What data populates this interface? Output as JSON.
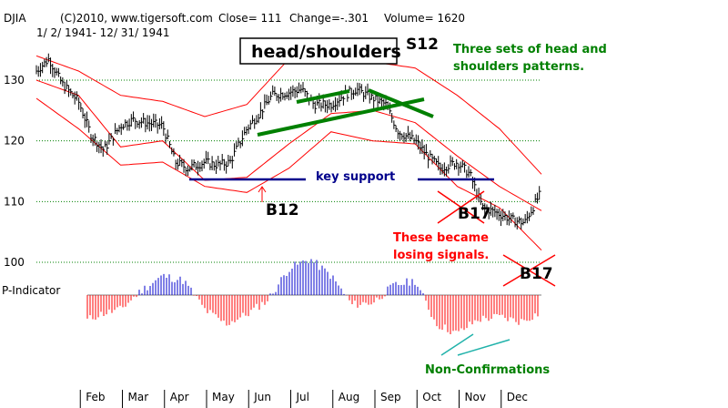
{
  "header": {
    "ticker": "DJIA",
    "copyright": "(C)2010, www.tigersoft.com",
    "close": "Close=  111",
    "change": "Change=-.301",
    "volume": "Volume= 1620",
    "date_range": "1/ 2/ 1941- 12/ 31/ 1941"
  },
  "annotations": {
    "head_shoulders": "head/shoulders",
    "s12": "S12",
    "three_sets_1": "Three sets of head and",
    "three_sets_2": "shoulders patterns.",
    "key_support": "key support",
    "b12": "B12",
    "b17_a": "B17",
    "b17_b": "B17",
    "losing_1": "These became",
    "losing_2": "losing signals.",
    "p_indicator": "P-Indicator",
    "non_conf": "Non-Confirmations"
  },
  "colors": {
    "price_bars": "#000000",
    "bands": "#ff0000",
    "gridline": "#008000",
    "p_positive": "#0000cd",
    "p_negative": "#ff0000",
    "neckline": "#008000",
    "support": "#00008b",
    "non_conf_lines": "#20b2aa"
  },
  "chart_data": {
    "type": "line",
    "title": "DJIA",
    "x_ticks": [
      "Feb",
      "Mar",
      "Apr",
      "May",
      "Jun",
      "Jul",
      "Aug",
      "Sep",
      "Oct",
      "Nov",
      "Dec"
    ],
    "y_ticks": [
      130,
      120,
      110,
      100
    ],
    "ylim": [
      97,
      136
    ],
    "grid": true,
    "series": [
      {
        "style": "price-bars",
        "x": [
          0,
          0.3,
          0.6,
          1.0,
          1.3,
          1.6,
          2.0,
          2.3,
          2.6,
          3.0,
          3.3,
          3.6,
          4.0,
          4.3,
          4.6,
          5.0,
          5.3,
          5.6,
          6.0,
          6.3,
          6.6,
          7.0,
          7.3,
          7.6,
          8.0,
          8.3,
          8.6,
          9.0,
          9.3,
          9.6,
          10.0,
          10.3,
          10.6,
          11.0,
          11.3,
          11.6,
          11.95
        ],
        "close": [
          131.5,
          133.5,
          129.5,
          126.5,
          121,
          118.5,
          122.5,
          123.5,
          123,
          122.5,
          116.5,
          115.5,
          116.5,
          116,
          116.5,
          122,
          124.5,
          127.5,
          128,
          128.5,
          126,
          126,
          127.5,
          128.5,
          127,
          126,
          121.5,
          120,
          117.5,
          115.5,
          116.5,
          114.5,
          109,
          108,
          107,
          106.5,
          111
        ]
      },
      {
        "style": "band",
        "x": [
          0,
          1,
          2,
          3,
          4,
          5,
          6,
          7,
          8,
          9,
          10,
          11,
          12
        ],
        "values": [
          134,
          131.5,
          127.5,
          126.5,
          124,
          126,
          133.5,
          134.5,
          133,
          132,
          127.5,
          122,
          114.5
        ]
      },
      {
        "style": "band",
        "x": [
          0,
          1,
          2,
          3,
          4,
          5,
          6,
          7,
          8,
          9,
          10,
          11,
          12
        ],
        "values": [
          130,
          127.5,
          119,
          120,
          113.5,
          114,
          119.5,
          124.5,
          125,
          123,
          117.5,
          112.5,
          108.5
        ]
      },
      {
        "style": "band",
        "x": [
          0,
          1,
          2,
          3,
          4,
          5,
          6,
          7,
          8,
          9,
          10,
          11,
          12
        ],
        "values": [
          127,
          122,
          116,
          116.5,
          112.5,
          111.5,
          115.5,
          121.5,
          120,
          119.5,
          112.5,
          109,
          102
        ]
      }
    ],
    "p_indicator": {
      "x": [
        0,
        0.5,
        1,
        1.5,
        2,
        2.5,
        3,
        3.5,
        4,
        4.5,
        5,
        5.5,
        6,
        6.5,
        7,
        7.5,
        8,
        8.5,
        9,
        9.5,
        10,
        10.5,
        11,
        11.5,
        12
      ],
      "values": [
        -0.4,
        -0.9,
        -0.6,
        -0.4,
        -0.3,
        0.1,
        0.4,
        0.3,
        -0.3,
        -0.6,
        -0.4,
        -0.1,
        0.55,
        0.75,
        0.4,
        -0.2,
        -0.15,
        0.2,
        0.3,
        -0.6,
        -0.8,
        -0.5,
        -0.45,
        -0.55,
        -0.35
      ]
    }
  }
}
